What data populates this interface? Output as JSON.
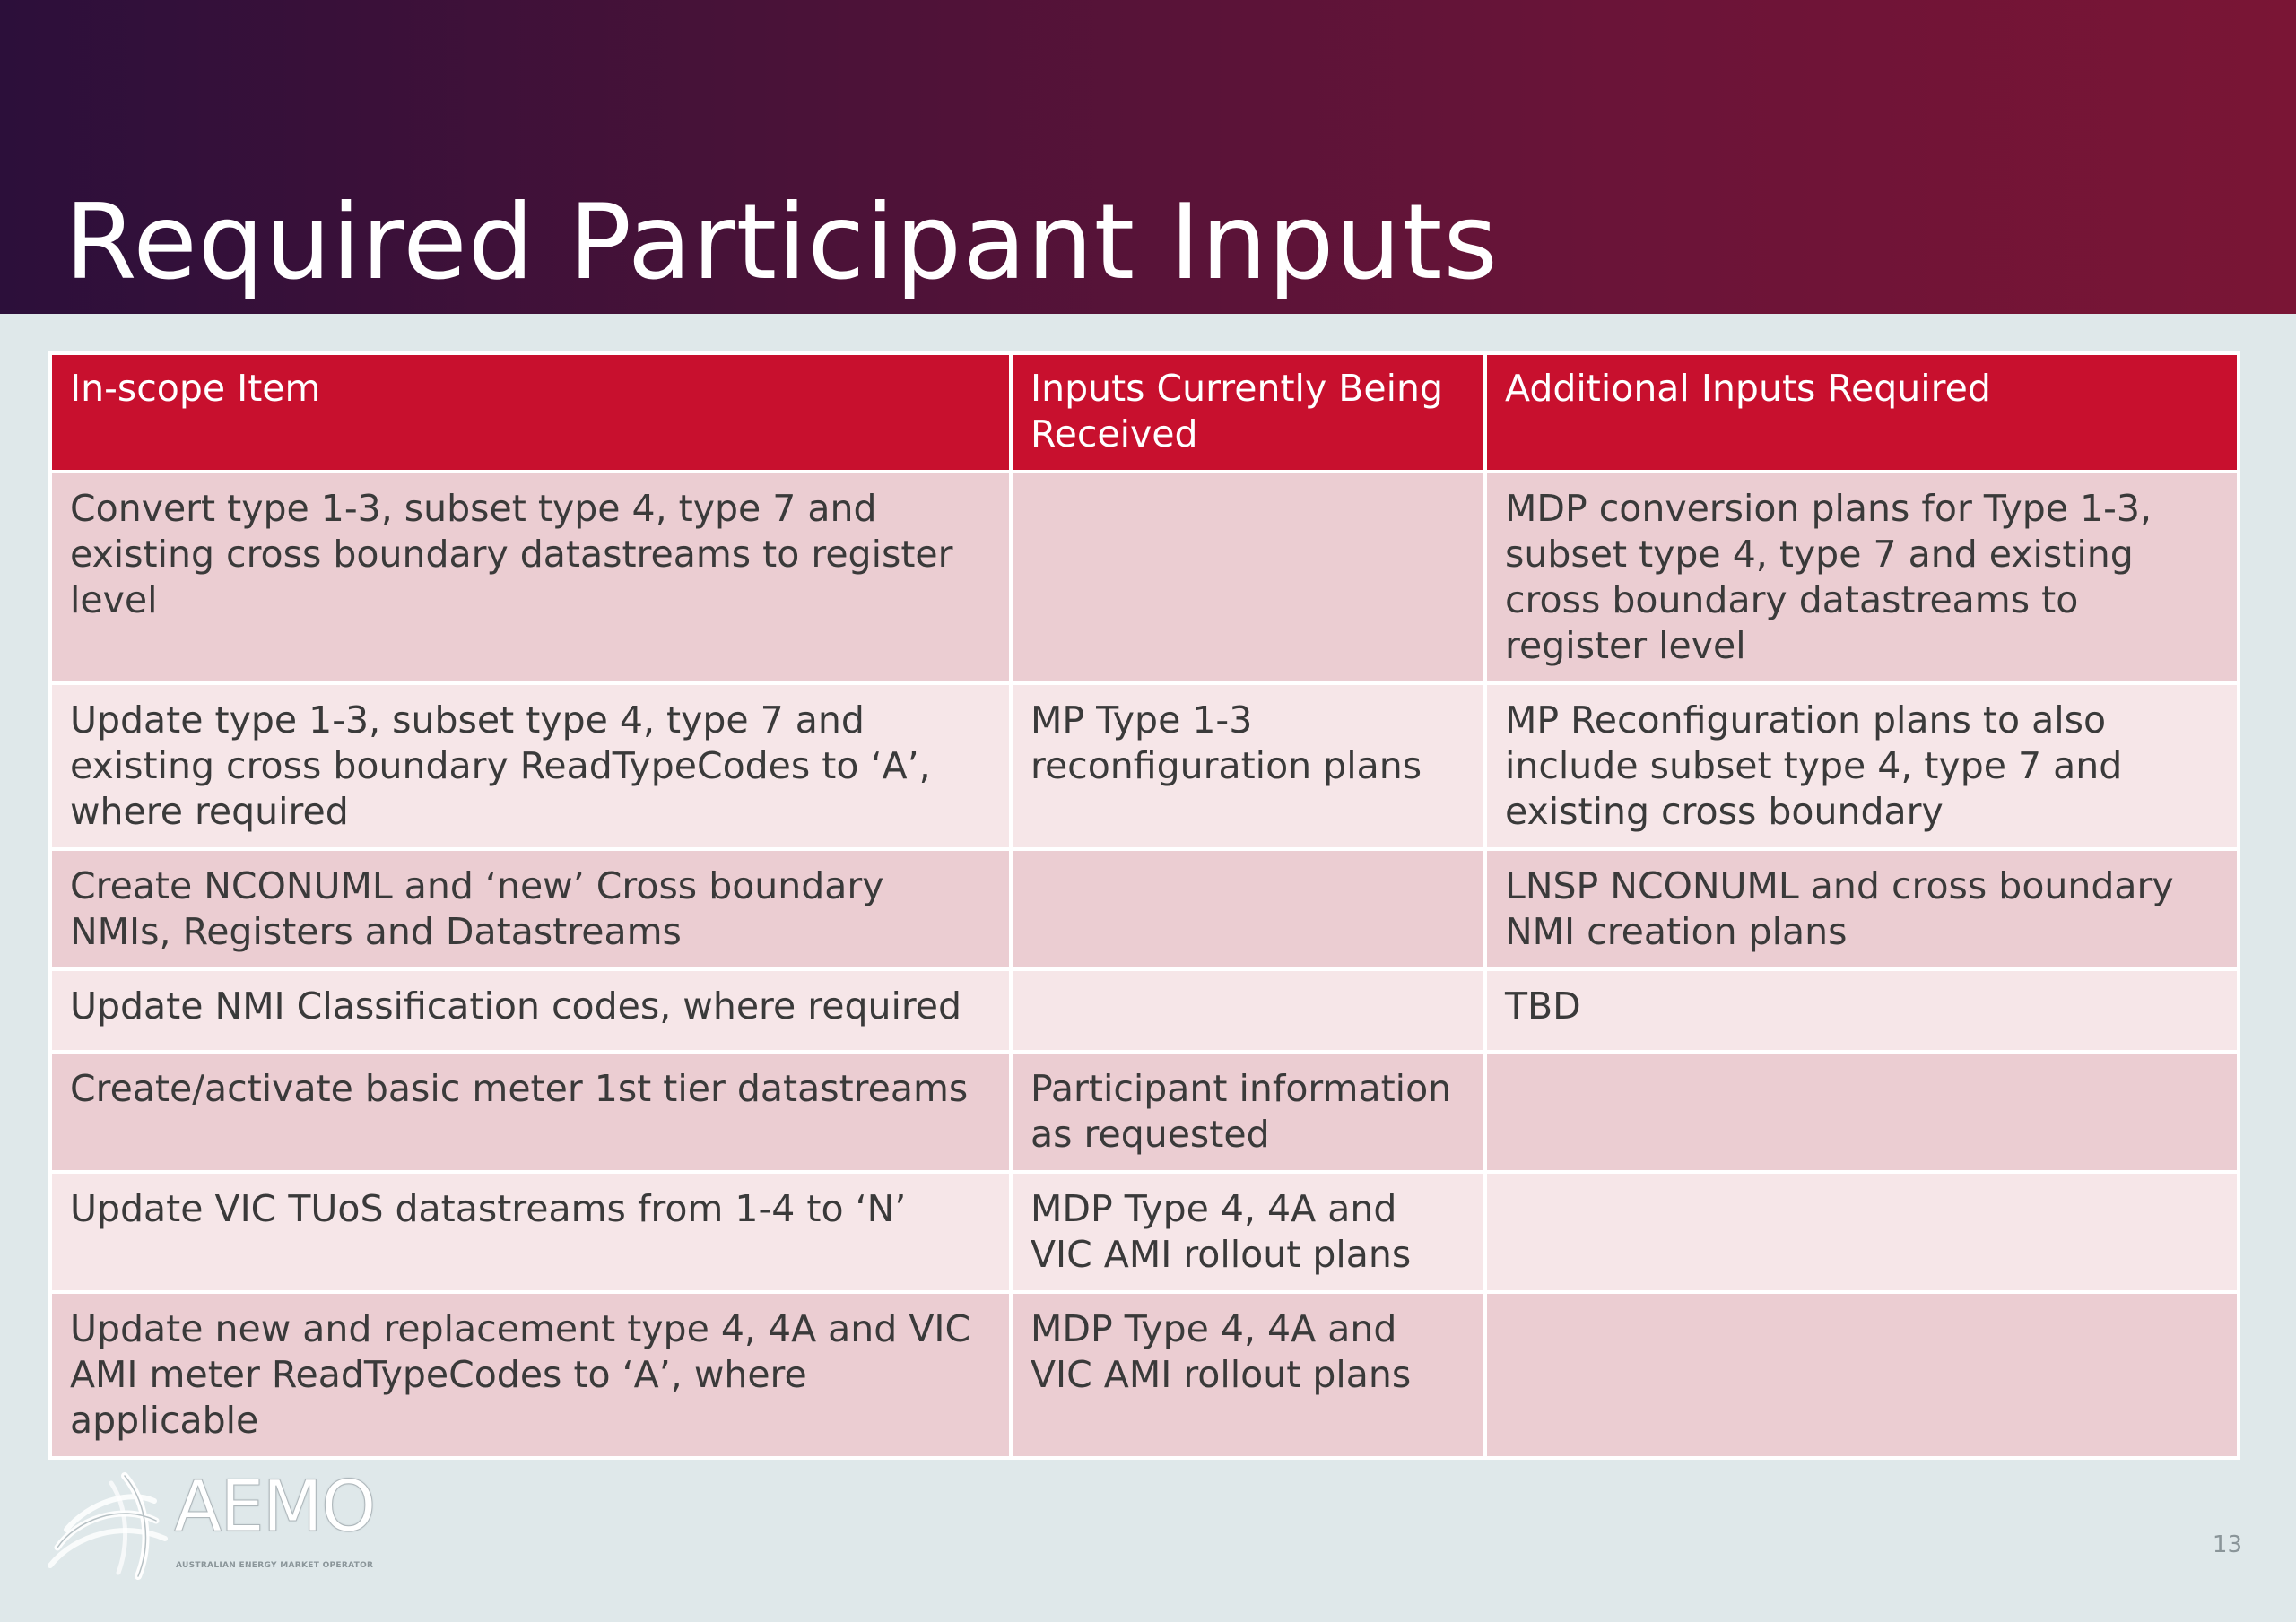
{
  "slide": {
    "title": "Required Participant Inputs",
    "page_number": "13"
  },
  "table": {
    "headers": [
      "In-scope Item",
      "Inputs Currently Being Received",
      "Additional Inputs Required"
    ],
    "rows": [
      [
        "Convert type 1-3, subset type 4, type 7 and existing cross boundary datastreams to register level",
        "",
        "MDP conversion plans for Type 1-3, subset type 4, type 7 and existing cross boundary datastreams to register level"
      ],
      [
        "Update type 1-3, subset type 4, type 7 and existing cross boundary ReadTypeCodes to ‘A’, where required",
        "MP Type 1-3 reconfiguration plans",
        "MP Reconfiguration plans to also include subset type 4, type 7 and existing cross boundary"
      ],
      [
        "Create NCONUML and ‘new’ Cross boundary NMIs, Registers and Datastreams",
        "",
        "LNSP NCONUML and cross boundary NMI creation plans"
      ],
      [
        "Update NMI Classification codes, where required",
        "",
        "TBD"
      ],
      [
        "Create/activate basic meter 1st tier datastreams",
        "Participant information as requested",
        ""
      ],
      [
        "Update VIC TUoS datastreams from 1-4 to ‘N’",
        "MDP Type 4, 4A and VIC AMI rollout plans",
        ""
      ],
      [
        "Update new and replacement type 4, 4A and VIC AMI meter ReadTypeCodes to ‘A’, where applicable",
        "MDP Type 4, 4A and VIC AMI rollout plans",
        ""
      ]
    ]
  },
  "logo": {
    "name": "AEMO",
    "subtitle": "AUSTRALIAN ENERGY MARKET OPERATOR",
    "icon": "aemo-swirl-icon"
  },
  "colors": {
    "header_gradient_start": "#2c0f3a",
    "header_gradient_end": "#7a1535",
    "table_header": "#c8102e",
    "row_dark": "#ebcdd2",
    "row_light": "#f6e6e8",
    "background": "#dfe8ea"
  }
}
